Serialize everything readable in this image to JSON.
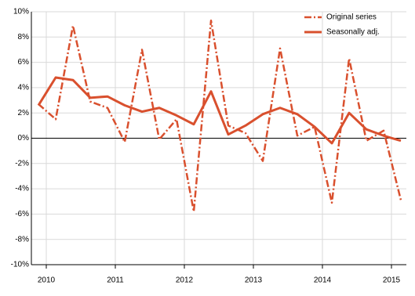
{
  "chart_data": {
    "type": "line",
    "categories": [
      "2010",
      null,
      null,
      null,
      "2011",
      null,
      null,
      null,
      "2012",
      null,
      null,
      null,
      "2013",
      null,
      null,
      null,
      "2014",
      null,
      null,
      null,
      "2015",
      null
    ],
    "series": [
      {
        "name": "Original series",
        "color": "#d9502e",
        "dash": "dashdot",
        "values": [
          2.7,
          1.5,
          8.9,
          2.9,
          2.4,
          -0.3,
          7.0,
          -0.1,
          1.5,
          -5.8,
          9.3,
          1.0,
          0.4,
          -1.8,
          7.1,
          0.2,
          0.9,
          -5.1,
          6.3,
          -0.2,
          0.6,
          -4.9
        ]
      },
      {
        "name": "Seasonally adj.",
        "color": "#d9502e",
        "dash": "solid",
        "values": [
          2.6,
          4.8,
          4.6,
          3.2,
          3.3,
          2.6,
          2.1,
          2.4,
          1.8,
          1.1,
          3.7,
          0.3,
          1.0,
          1.9,
          2.4,
          1.9,
          0.9,
          -0.4,
          2.0,
          0.7,
          0.2,
          -0.2
        ]
      }
    ],
    "ylim": [
      -10,
      10
    ],
    "yticks": [
      {
        "value": -10,
        "label": "-10%"
      },
      {
        "value": -8,
        "label": "-8%"
      },
      {
        "value": -6,
        "label": "-6%"
      },
      {
        "value": -4,
        "label": "-4%"
      },
      {
        "value": -2,
        "label": "-2%"
      },
      {
        "value": 0,
        "label": "0%"
      },
      {
        "value": 2,
        "label": "2%"
      },
      {
        "value": 4,
        "label": "4%"
      },
      {
        "value": 6,
        "label": "6%"
      },
      {
        "value": 8,
        "label": "8%"
      },
      {
        "value": 10,
        "label": "10%"
      }
    ],
    "grid": true,
    "legend": "top-right"
  }
}
